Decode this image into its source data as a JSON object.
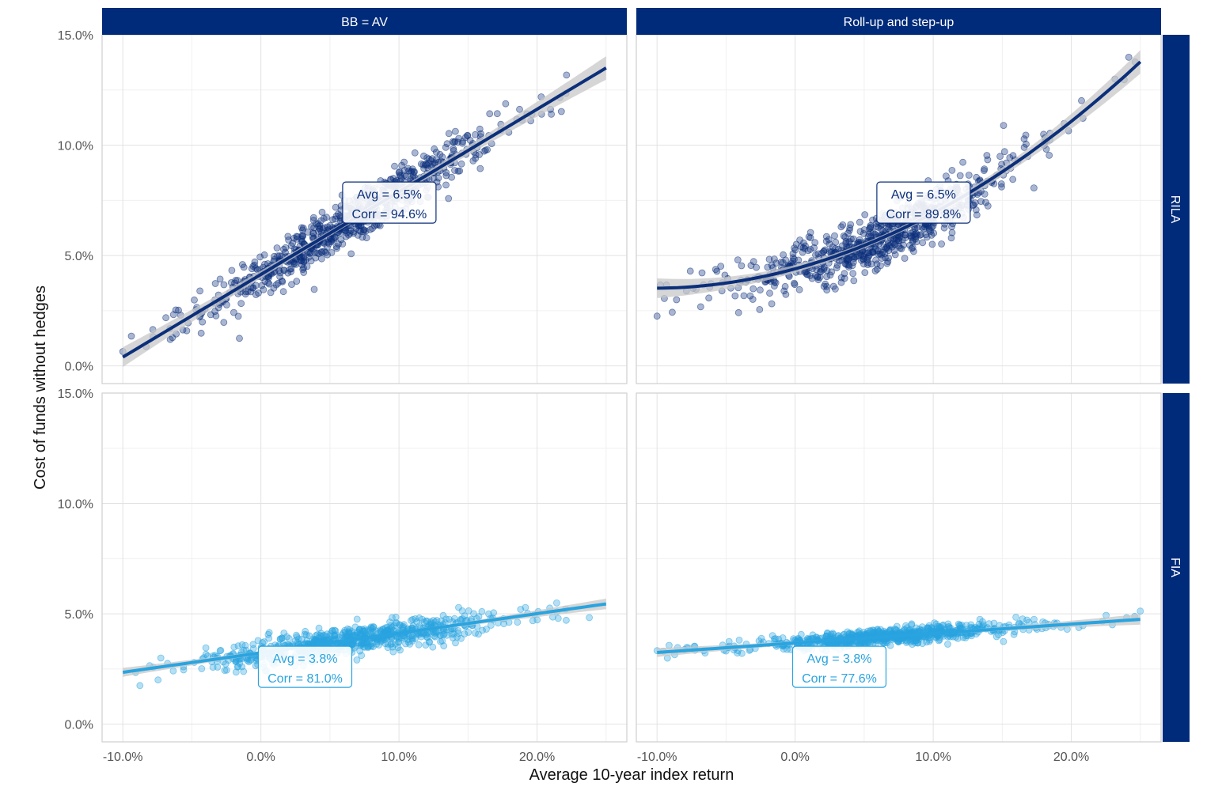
{
  "chart_data": {
    "type": "scatter",
    "title": "",
    "xlabel": "Average 10-year index return",
    "ylabel": "Cost of funds without hedges",
    "x_ticks": [
      -10,
      0,
      10,
      20
    ],
    "x_tick_labels": [
      "-10.0%",
      "0.0%",
      "10.0%",
      "20.0%"
    ],
    "y_ticks": [
      0,
      5,
      10,
      15
    ],
    "y_tick_labels": [
      "0.0%",
      "5.0%",
      "10.0%",
      "15.0%"
    ],
    "xlim": [
      -11.5,
      26.5
    ],
    "ylim": [
      -0.8,
      15
    ],
    "grid": true,
    "column_facets": [
      "BB = AV",
      "Roll-up and step-up"
    ],
    "row_facets": [
      "RILA",
      "FIA"
    ],
    "panels": [
      {
        "col": "BB = AV",
        "row": "RILA",
        "color": "#0b2f7a",
        "annotation": {
          "line1": "Avg = 6.5%",
          "line2": "Corr = 94.6%",
          "x": 9.3,
          "y": 7.4
        },
        "fit": {
          "x": [
            -10,
            25
          ],
          "y": [
            0.4,
            13.5
          ]
        },
        "cloud": {
          "n": 750,
          "x_mean": 6.5,
          "x_sd": 5.2,
          "x_min": -10,
          "x_max": 25,
          "intercept": 4.14,
          "slope": 0.375,
          "quad": 0,
          "noise_sd": 0.55
        }
      },
      {
        "col": "Roll-up and step-up",
        "row": "RILA",
        "color": "#0b2f7a",
        "annotation": {
          "line1": "Avg = 6.5%",
          "line2": "Corr = 89.8%",
          "x": 9.3,
          "y": 7.4
        },
        "fit": {
          "x": [
            -10,
            25
          ],
          "y": [
            3.55,
            13.0
          ]
        },
        "cloud": {
          "n": 750,
          "x_mean": 6.5,
          "x_sd": 5.2,
          "x_min": -10,
          "x_max": 25,
          "intercept": 4.4,
          "slope": 0.17,
          "quad": 0.0082,
          "noise_sd": 0.6
        }
      },
      {
        "col": "BB = AV",
        "row": "FIA",
        "color": "#29a4e0",
        "annotation": {
          "line1": "Avg = 3.8%",
          "line2": "Corr = 81.0%",
          "x": 3.2,
          "y": 2.6
        },
        "fit": {
          "x": [
            -10,
            25
          ],
          "y": [
            2.35,
            5.45
          ]
        },
        "cloud": {
          "n": 750,
          "x_mean": 6.5,
          "x_sd": 5.2,
          "x_min": -10,
          "x_max": 25,
          "intercept": 3.22,
          "slope": 0.0886,
          "quad": 0,
          "noise_sd": 0.32
        }
      },
      {
        "col": "Roll-up and step-up",
        "row": "FIA",
        "color": "#29a4e0",
        "annotation": {
          "line1": "Avg = 3.8%",
          "line2": "Corr = 77.6%",
          "x": 3.2,
          "y": 2.6
        },
        "fit": {
          "x": [
            -10,
            25
          ],
          "y": [
            3.25,
            4.75
          ]
        },
        "cloud": {
          "n": 750,
          "x_mean": 6.5,
          "x_sd": 5.2,
          "x_min": -10,
          "x_max": 25,
          "intercept": 3.68,
          "slope": 0.0429,
          "quad": 0,
          "noise_sd": 0.17
        }
      }
    ]
  }
}
